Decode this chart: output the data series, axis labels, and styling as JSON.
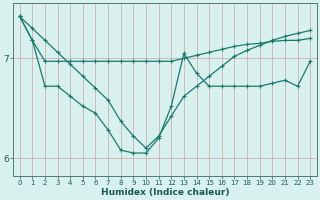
{
  "xlabel": "Humidex (Indice chaleur)",
  "x_values": [
    0,
    1,
    2,
    3,
    4,
    5,
    6,
    7,
    8,
    9,
    10,
    11,
    12,
    13,
    14,
    15,
    16,
    17,
    18,
    19,
    20,
    21,
    22,
    23
  ],
  "line1_y": [
    7.42,
    7.18,
    6.97,
    6.97,
    6.97,
    6.97,
    6.97,
    6.97,
    6.97,
    6.97,
    6.97,
    6.97,
    6.97,
    7.0,
    7.03,
    7.06,
    7.09,
    7.12,
    7.14,
    7.15,
    7.17,
    7.18,
    7.18,
    7.2
  ],
  "line2_y": [
    7.42,
    7.18,
    6.72,
    6.72,
    6.62,
    6.52,
    6.45,
    6.28,
    6.08,
    6.05,
    6.05,
    6.2,
    6.52,
    7.05,
    6.85,
    6.72,
    6.72,
    6.72,
    6.72,
    6.72,
    6.75,
    6.78,
    6.72,
    6.97
  ],
  "line3_y": [
    7.42,
    7.3,
    7.18,
    7.06,
    6.94,
    6.82,
    6.7,
    6.58,
    6.37,
    6.22,
    6.1,
    6.22,
    6.42,
    6.62,
    6.72,
    6.82,
    6.92,
    7.02,
    7.08,
    7.13,
    7.18,
    7.22,
    7.25,
    7.28
  ],
  "line_color": "#1a7a6e",
  "bg_color": "#d8f0ee",
  "vgrid_color": "#c8a8a8",
  "hgrid_color": "#c8a8a8",
  "axis_color": "#507a70",
  "text_color": "#1a5a50",
  "ylim_min": 5.82,
  "ylim_max": 7.55,
  "yticks": [
    6,
    7
  ],
  "markersize": 3.5,
  "linewidth": 0.9
}
